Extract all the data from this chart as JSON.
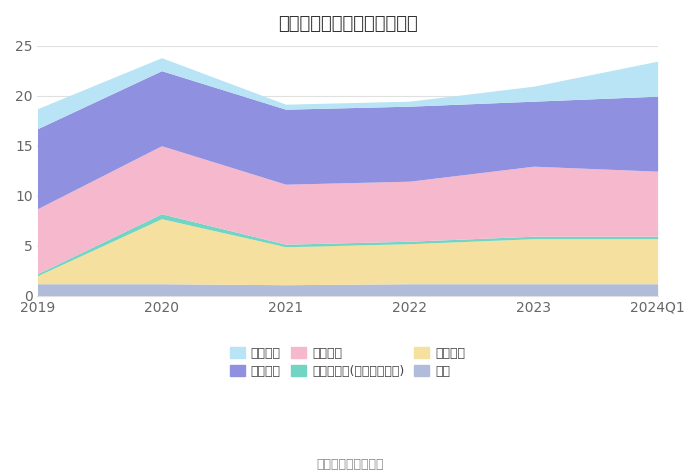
{
  "title": "历年主要负债堆积图（亿元）",
  "x_labels": [
    "2019",
    "2020",
    "2021",
    "2022",
    "2023",
    "2024Q1"
  ],
  "series": [
    {
      "name": "其它",
      "color": "#b0bcda",
      "values": [
        1.2,
        1.2,
        1.1,
        1.2,
        1.2,
        1.2
      ]
    },
    {
      "name": "应付债券",
      "color": "#f5e0a0",
      "values": [
        0.8,
        6.5,
        3.8,
        4.0,
        4.5,
        4.5
      ]
    },
    {
      "name": "其他应付款(含利息和股利)",
      "color": "#72d4c2",
      "values": [
        0.2,
        0.5,
        0.25,
        0.25,
        0.25,
        0.25
      ]
    },
    {
      "name": "应付账款",
      "color": "#f5b8cc",
      "values": [
        6.5,
        6.8,
        6.0,
        6.0,
        7.0,
        6.5
      ]
    },
    {
      "name": "应付票据",
      "color": "#9090e0",
      "values": [
        8.0,
        7.5,
        7.5,
        7.5,
        6.5,
        7.5
      ]
    },
    {
      "name": "短期借款",
      "color": "#b8e4f5",
      "values": [
        2.0,
        1.3,
        0.5,
        0.5,
        1.5,
        3.5
      ]
    }
  ],
  "ylim": [
    0,
    25
  ],
  "yticks": [
    0,
    5,
    10,
    15,
    20,
    25
  ],
  "legend_order": [
    "短期借款",
    "应付票据",
    "应付账款",
    "其他应付款(含利息和股利)",
    "应付债券",
    "其它"
  ],
  "source_text": "数据来源：恒生聚源",
  "bg_color": "#ffffff",
  "grid_color": "#e0e0e0",
  "title_fontsize": 13,
  "label_fontsize": 10,
  "legend_fontsize": 9
}
